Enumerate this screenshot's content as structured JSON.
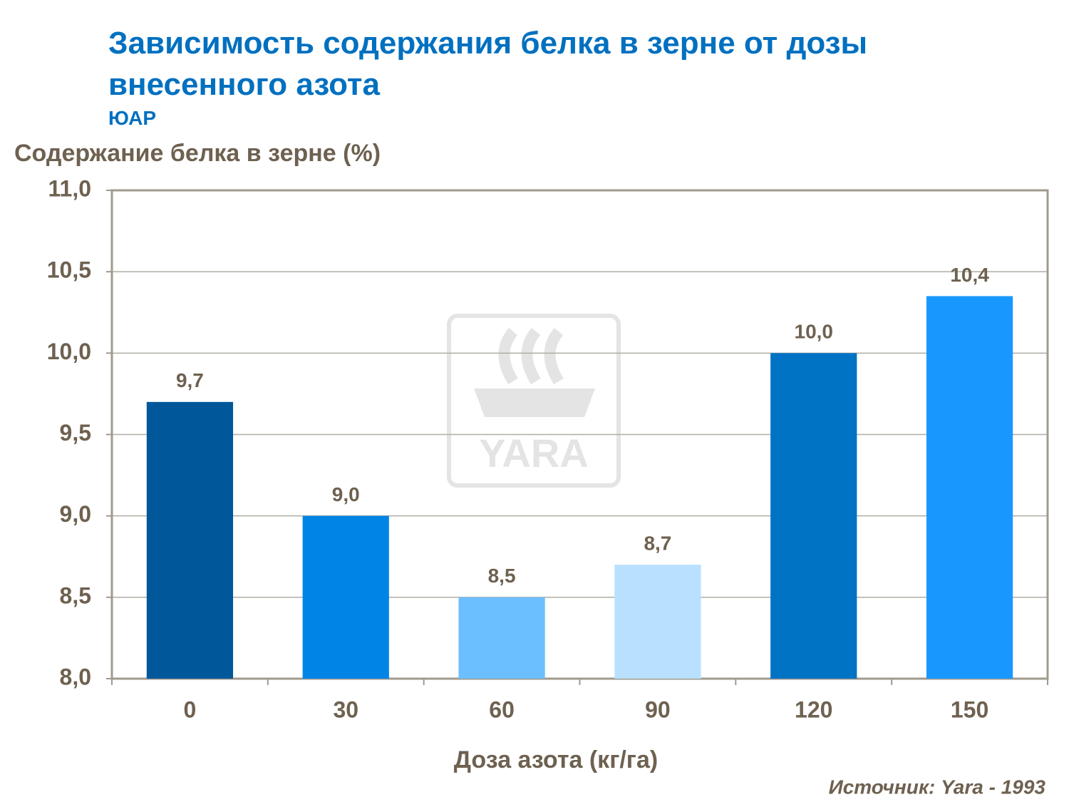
{
  "chart_data": {
    "type": "bar",
    "title": "Зависимость содержания белка в зерне от дозы внесенного азота",
    "subtitle": "ЮАР",
    "y_label": "Содержание белка в зерне (%)",
    "x_label": "Доза азота (кг/га)",
    "source": "Источник: Yara - 1993",
    "watermark": "YARA",
    "categories": [
      "0",
      "30",
      "60",
      "90",
      "120",
      "150"
    ],
    "values": [
      9.7,
      9.0,
      8.5,
      8.7,
      10.0,
      10.35
    ],
    "value_labels": [
      "9,7",
      "9,0",
      "8,5",
      "8,7",
      "10,0",
      "10,4"
    ],
    "colors": [
      "#00589a",
      "#0085e6",
      "#6bbfff",
      "#b9e0ff",
      "#0073c4",
      "#1898ff"
    ],
    "ylim": [
      8.0,
      11.0
    ],
    "yticks": [
      {
        "value": 8.0,
        "label": "8,0"
      },
      {
        "value": 8.5,
        "label": "8,5"
      },
      {
        "value": 9.0,
        "label": "9,0"
      },
      {
        "value": 9.5,
        "label": "9,5"
      },
      {
        "value": 10.0,
        "label": "10,0"
      },
      {
        "value": 10.5,
        "label": "10,5"
      },
      {
        "value": 11.0,
        "label": "11,0"
      }
    ],
    "grid": true
  }
}
